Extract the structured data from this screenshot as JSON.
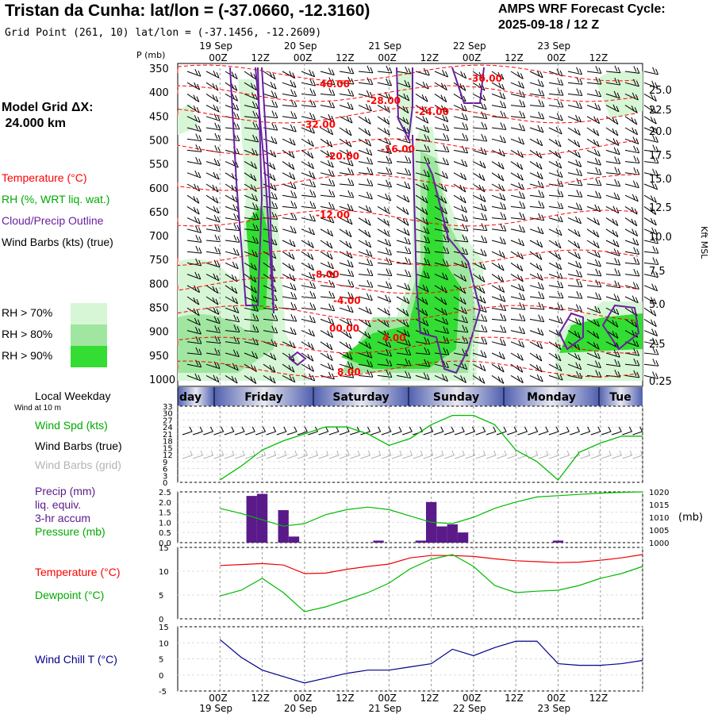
{
  "header": {
    "title": "Tristan da Cunha:  lat/lon = (-37.0660, -12.3160)",
    "grid_point": "Grid Point (261, 10) lat/lon = (-37.1456, -12.2609)",
    "cycle_label": "AMPS WRF Forecast Cycle:",
    "cycle_value": "2025-09-18 / 12  Z"
  },
  "legend": {
    "model_grid_label": "Model Grid ΔX:",
    "model_grid_value": " 24.000 km",
    "temperature": "Temperature (°C)",
    "rh": "RH (%, WRT liq. wat.)",
    "cloud": "Cloud/Precip Outline",
    "wind_barbs": "Wind Barbs (kts) (true)",
    "rh70": "RH > 70%",
    "rh80": "RH > 80%",
    "rh90": "RH > 90%",
    "local_weekday": "Local Weekday",
    "wind_at_10m": "Wind at 10 m",
    "wind_spd": "Wind Spd (kts)",
    "wind_barbs_true": "Wind Barbs (true)",
    "wind_barbs_grid": "Wind Barbs (grid)",
    "precip1": "Precip (mm)",
    "precip2": "liq. equiv.",
    "precip3": "3-hr accum",
    "pressure": "Pressure (mb)",
    "temperature2": "Temperature (°C)",
    "dewpoint": "Dewpoint (°C)",
    "wind_chill": "Wind Chill T (°C)",
    "pmb": "P (mb)",
    "mb": "(mb)",
    "kft": "Kft MSL"
  },
  "colors": {
    "temp": "#ff0000",
    "rh": "#00aa00",
    "cloud": "#6a1fa0",
    "rh70": "#d6f6d6",
    "rh80": "#a0e6a0",
    "rh90": "#33dd33",
    "precip": "#5a1a8a",
    "windchill": "#00008b",
    "grid": "#9a9a9a"
  },
  "chart_data": [
    {
      "type": "heatmap",
      "title": "Vertical cross-section (temperature, RH, cloud, wind barbs)",
      "x_ticks_top": [
        "00Z",
        "12Z",
        "00Z",
        "12Z",
        "00Z",
        "12Z",
        "00Z",
        "12Z",
        "00Z",
        "12Z"
      ],
      "date_ticks": [
        "19 Sep",
        "20 Sep",
        "21 Sep",
        "22 Sep",
        "23 Sep"
      ],
      "pressure_levels_mb": [
        350,
        400,
        450,
        500,
        550,
        600,
        650,
        700,
        750,
        800,
        850,
        900,
        950,
        1000
      ],
      "height_kft": [
        "25.0",
        "22.5",
        "20.0",
        "17.5",
        "15.0",
        "12.5",
        "10.0",
        "7.5",
        "5.0",
        "2.5",
        "0.25"
      ],
      "temperature_labels": [
        "-40.00",
        "-36.00",
        "-28.00",
        "-24.00",
        "-32.00",
        "-20.00",
        "-16.00",
        "-12.00",
        "-8.00",
        "-4.00",
        "00.00",
        "4.00",
        "8.00"
      ]
    },
    {
      "type": "line",
      "title": "Wind speed at 10 m",
      "weekdays": [
        "day",
        "Friday",
        "Saturday",
        "Sunday",
        "Monday",
        "Tue"
      ],
      "y_ticks": [
        "33",
        "30",
        "27",
        "24",
        "21",
        "18",
        "15",
        "12",
        "9",
        "6",
        "3",
        "0"
      ],
      "ylim": [
        0,
        33
      ],
      "x_hours": [
        0,
        6,
        12,
        18,
        24,
        30,
        36,
        42,
        48,
        54,
        60,
        66,
        72,
        78,
        84,
        90,
        96,
        102,
        108,
        114,
        120
      ],
      "wind_speed_kts": [
        1,
        7,
        14,
        18,
        21,
        24,
        24,
        21,
        16,
        19,
        25,
        29,
        29,
        25,
        14,
        9,
        1,
        13,
        17,
        20,
        20
      ]
    },
    {
      "type": "bar",
      "title": "3-hr accumulated precipitation and pressure",
      "y_ticks_left": [
        "2.5",
        "2.0",
        "1.5",
        "1.0",
        "0.5",
        "0.0"
      ],
      "y_ticks_right": [
        "1020",
        "1015",
        "1010",
        "1005",
        "1000"
      ],
      "ylim_left": [
        0,
        2.5
      ],
      "ylim_right": [
        1000,
        1020
      ],
      "bars": [
        {
          "hour": 9,
          "value": 2.3
        },
        {
          "hour": 12,
          "value": 2.4
        },
        {
          "hour": 18,
          "value": 1.6
        },
        {
          "hour": 21,
          "value": 0.3
        },
        {
          "hour": 45,
          "value": 0.1
        },
        {
          "hour": 57,
          "value": 0.1
        },
        {
          "hour": 60,
          "value": 2.0
        },
        {
          "hour": 63,
          "value": 0.8
        },
        {
          "hour": 66,
          "value": 0.9
        },
        {
          "hour": 69,
          "value": 0.5
        },
        {
          "hour": 96,
          "value": 0.1
        }
      ],
      "pressure_hours": [
        0,
        6,
        12,
        18,
        24,
        30,
        36,
        42,
        48,
        54,
        60,
        66,
        72,
        78,
        84,
        90,
        96,
        102,
        108,
        114,
        120
      ],
      "pressure_mb": [
        1013.5,
        1011.5,
        1009,
        1006.5,
        1007.5,
        1011,
        1013,
        1014,
        1013,
        1010.5,
        1008,
        1007.5,
        1010,
        1013.5,
        1016,
        1018,
        1018.5,
        1019,
        1019.5,
        1019.8,
        1020
      ]
    },
    {
      "type": "line",
      "title": "Temperature and dewpoint",
      "y_ticks": [
        "15",
        "10",
        "5",
        "0"
      ],
      "ylim": [
        0,
        15
      ],
      "x_hours": [
        0,
        6,
        12,
        18,
        24,
        30,
        36,
        42,
        48,
        54,
        60,
        66,
        72,
        78,
        84,
        90,
        96,
        102,
        108,
        114,
        120
      ],
      "temperature_c": [
        11.2,
        11.4,
        11.6,
        11.3,
        9.5,
        9.6,
        10.4,
        11,
        11.5,
        12.8,
        13.3,
        13.3,
        13.1,
        12.6,
        12.2,
        12,
        11.8,
        11.9,
        12.3,
        12.8,
        13.5
      ],
      "dewpoint_c": [
        4.8,
        6,
        8.5,
        5.5,
        1.5,
        2.5,
        4,
        5.5,
        7.5,
        10.5,
        12.5,
        13.5,
        11,
        7,
        5.5,
        5.8,
        6,
        7,
        8.5,
        9.5,
        11
      ]
    },
    {
      "type": "line",
      "title": "Wind chill temperature",
      "y_ticks": [
        "15",
        "10",
        "5",
        "0",
        "-5"
      ],
      "ylim": [
        -5,
        15
      ],
      "x_hours": [
        0,
        6,
        12,
        18,
        24,
        30,
        36,
        42,
        48,
        54,
        60,
        66,
        72,
        78,
        84,
        90,
        96,
        102,
        108,
        114,
        120
      ],
      "wind_chill_c": [
        11,
        5.5,
        1.5,
        -0.5,
        -2.5,
        -1,
        0.5,
        1.5,
        1.5,
        2.5,
        3.5,
        8,
        6,
        8.5,
        10.5,
        10.5,
        3.5,
        3,
        3,
        3.5,
        4.5
      ],
      "x_ticks_bottom": [
        "00Z",
        "12Z",
        "00Z",
        "12Z",
        "00Z",
        "12Z",
        "00Z",
        "12Z",
        "00Z",
        "12Z"
      ]
    }
  ]
}
